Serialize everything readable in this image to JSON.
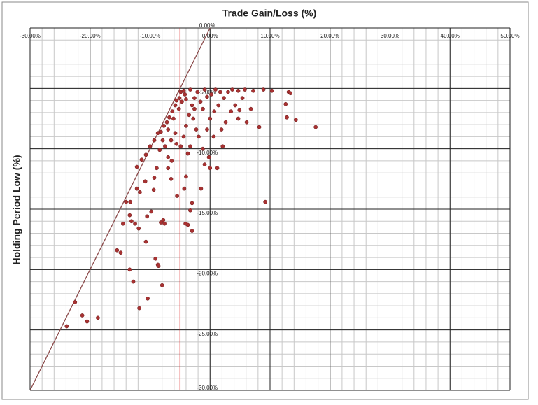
{
  "chart_data": {
    "type": "scatter",
    "title": "Trade Gain/Loss (%)",
    "y_label": "Holding Period Low (%)",
    "color": "#a83232",
    "xlim": [
      -30,
      50
    ],
    "ylim": [
      -30,
      0
    ],
    "xticks": [
      {
        "value": -30,
        "label": "-30.00%"
      },
      {
        "value": -20,
        "label": "-20.00%"
      },
      {
        "value": -10,
        "label": "-10.00%"
      },
      {
        "value": 0,
        "label": "0.00%"
      },
      {
        "value": 10,
        "label": "10.00%"
      },
      {
        "value": 20,
        "label": "20.00%"
      },
      {
        "value": 30,
        "label": "30.00%"
      },
      {
        "value": 40,
        "label": "40.00%"
      },
      {
        "value": 50,
        "label": "50.00%"
      }
    ],
    "yticks": [
      {
        "value": 0,
        "label": "0.00%"
      },
      {
        "value": -5,
        "label": "-5.00%"
      },
      {
        "value": -10,
        "label": "-10.00%"
      },
      {
        "value": -15,
        "label": "-15.00%"
      },
      {
        "value": -20,
        "label": "-20.00%"
      },
      {
        "value": -25,
        "label": "-25.00%"
      },
      {
        "value": -30,
        "label": "-30.00%"
      }
    ],
    "x_minor_step": 2,
    "y_minor_step": 1,
    "grid": true,
    "reference_lines": [
      {
        "x": [
          -5,
          -5
        ],
        "y": [
          0,
          -30
        ],
        "color": "#e02020"
      },
      {
        "x": [
          0,
          -30
        ],
        "y": [
          0,
          -30
        ],
        "color": "#8b4a4a"
      }
    ],
    "x": [
      -23.9,
      -22.5,
      -21.3,
      -20.5,
      -18.7,
      -15.5,
      -14.9,
      -14.5,
      -14.0,
      -13.3,
      -13.4,
      -13.1,
      -13.4,
      -12.8,
      -12.5,
      -11.9,
      -11.8,
      -12.2,
      -11.7,
      -10.8,
      -10.5,
      -10.7,
      -10.4,
      -9.8,
      -9.4,
      -9.1,
      -8.7,
      -8.6,
      -8.2,
      -7.8,
      -8.0,
      -7.6,
      -9.3,
      -8.9,
      -7.0,
      -6.5,
      -5.5,
      -4.3,
      -3.7,
      -4.1,
      -4.0,
      -3.0,
      -3.0,
      -3.3,
      -1.5,
      9.2,
      -12.2,
      -11.4,
      -10.7,
      -10.0,
      -9.3,
      -8.7,
      -8.2,
      -7.7,
      -7.2,
      -6.8,
      -6.3,
      -5.8,
      -5.6,
      -5.1,
      -4.9,
      -4.4,
      -4.2,
      -4.7,
      -5.2,
      -6.1,
      -7.0,
      -7.9,
      -7.5,
      -8.4,
      -6.5,
      -5.8,
      -5.6,
      -7.0,
      -6.4,
      -4.9,
      -4.4,
      -4.0,
      -3.5,
      -3.0,
      -2.6,
      -2.1,
      -1.6,
      -1.2,
      -2.8,
      -2.3,
      -1.9,
      -3.3,
      -3.7,
      -1.2,
      -0.2,
      -0.9,
      0.0,
      1.2,
      2.1,
      0.6,
      -0.5,
      0.0,
      0.7,
      1.4,
      2.3,
      3.0,
      3.7,
      4.7,
      5.4,
      5.8,
      7.2,
      8.9,
      10.3,
      13.1,
      12.6,
      13.4,
      12.8,
      14.3,
      17.6,
      8.2,
      6.8,
      6.1,
      4.7,
      3.5,
      2.6,
      1.9,
      4.2,
      4.9,
      -0.9,
      -0.5,
      0.2,
      0.9,
      1.7,
      -3.3,
      -4.0,
      -2.6
    ],
    "y": [
      -24.7,
      -22.7,
      -23.8,
      -24.3,
      -24.0,
      -18.4,
      -18.6,
      -16.2,
      -14.4,
      -14.4,
      -15.5,
      -16.0,
      -20.0,
      -21.0,
      -16.2,
      -16.6,
      -23.2,
      -13.3,
      -13.6,
      -12.7,
      -15.6,
      -17.7,
      -22.4,
      -15.2,
      -13.4,
      -19.1,
      -19.6,
      -19.7,
      -16.1,
      -15.9,
      -21.3,
      -16.2,
      -12.4,
      -11.6,
      -11.6,
      -12.5,
      -13.9,
      -13.3,
      -16.3,
      -16.2,
      -12.3,
      -14.5,
      -16.8,
      -15.1,
      -13.3,
      -14.4,
      -11.5,
      -10.9,
      -10.5,
      -9.8,
      -9.3,
      -8.7,
      -8.6,
      -8.1,
      -7.8,
      -7.4,
      -6.9,
      -6.4,
      -6.0,
      -5.8,
      -5.3,
      -5.2,
      -5.5,
      -6.1,
      -6.7,
      -7.5,
      -8.4,
      -9.3,
      -9.8,
      -10.1,
      -9.3,
      -8.7,
      -9.6,
      -10.7,
      -11.0,
      -9.8,
      -9.0,
      -8.1,
      -7.2,
      -6.4,
      -5.8,
      -5.3,
      -6.1,
      -6.7,
      -7.5,
      -8.4,
      -9.0,
      -9.8,
      -10.4,
      -10.0,
      -10.7,
      -11.3,
      -11.6,
      -11.6,
      -9.8,
      -9.0,
      -8.4,
      -7.5,
      -6.9,
      -6.4,
      -5.8,
      -5.3,
      -5.1,
      -5.2,
      -5.8,
      -5.1,
      -5.2,
      -5.1,
      -5.2,
      -5.3,
      -6.3,
      -5.4,
      -7.4,
      -7.6,
      -8.2,
      -8.2,
      -6.7,
      -7.8,
      -7.5,
      -6.9,
      -7.8,
      -8.4,
      -6.4,
      -6.8,
      -5.1,
      -5.7,
      -5.5,
      -5.1,
      -5.3,
      -5.1,
      -5.9,
      -6.7
    ]
  }
}
